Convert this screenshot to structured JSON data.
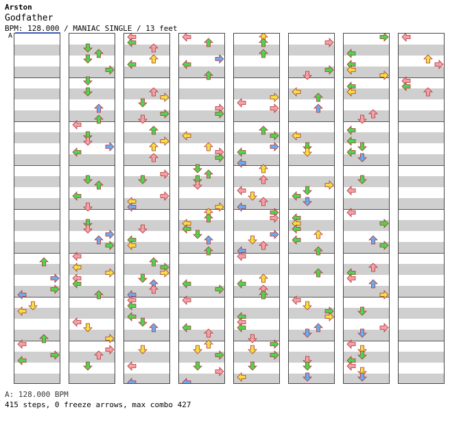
{
  "header": {
    "artist": "Arston",
    "title": "Godfather",
    "meta": "BPM: 128.000 / MANIAC SINGLE / 13 feet",
    "bpm_marker": "A"
  },
  "footer": {
    "bpm_line": "A: 128.000 BPM",
    "stats": "415 steps, 0 freeze arrows, max combo 427"
  },
  "colors": {
    "quarter": "#f4a0a8",
    "eighth": "#4fd44f",
    "sixteenth": "#f2e040",
    "other": "#6aaaf0"
  },
  "chart_data": {
    "type": "step-chart",
    "columns": 8,
    "measures_per_column": 8,
    "total_steps": 415,
    "freeze_arrows": 0,
    "max_combo": 427,
    "bpm": 128.0
  }
}
